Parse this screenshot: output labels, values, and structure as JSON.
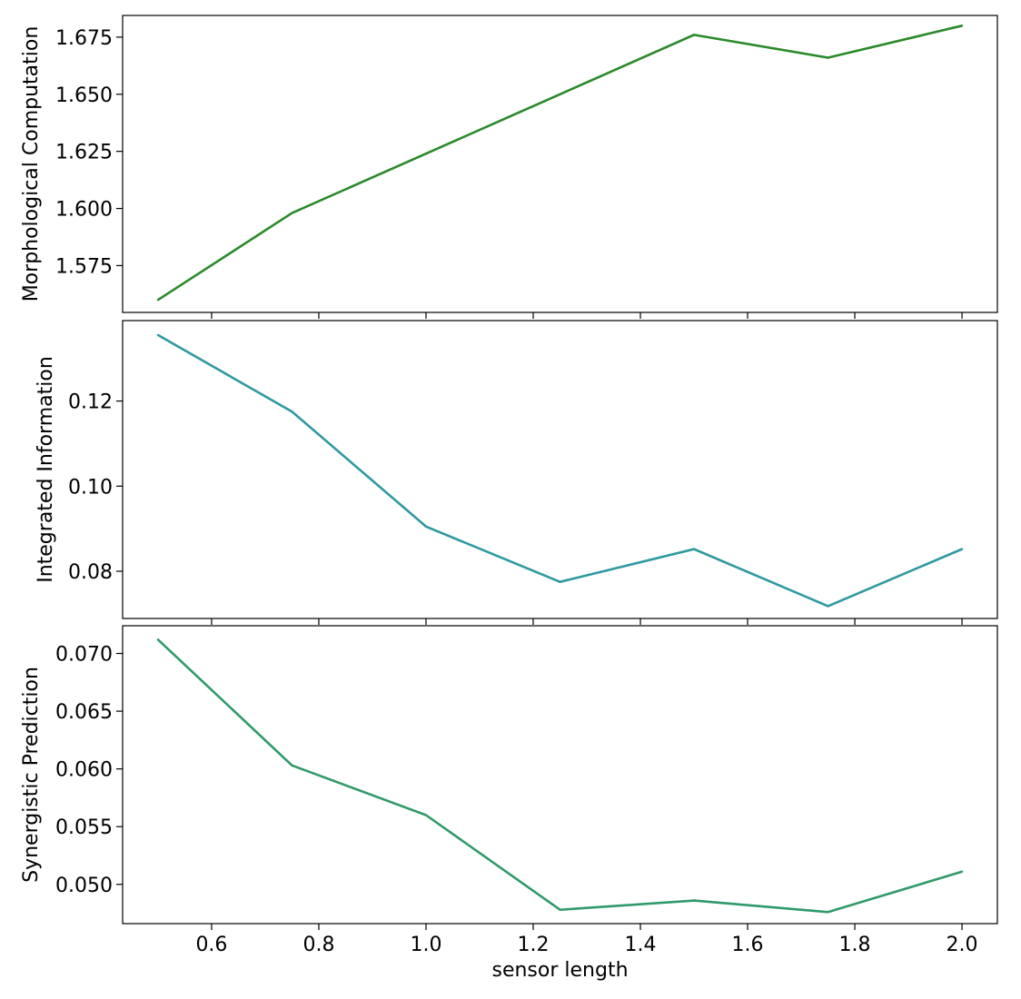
{
  "chart_data": [
    {
      "type": "line",
      "ylabel": "Morphological Computation",
      "xlabel": "",
      "x": [
        0.5,
        0.75,
        1.0,
        1.25,
        1.5,
        1.75,
        2.0
      ],
      "series": [
        {
          "values": [
            1.56,
            1.598,
            1.624,
            1.65,
            1.676,
            1.666,
            1.68
          ],
          "color": "#2a8a2a"
        }
      ],
      "xlim": [
        0.434,
        2.066
      ],
      "ylim": [
        1.5545,
        1.6845
      ],
      "yticks": [
        1.575,
        1.6,
        1.625,
        1.65,
        1.675
      ],
      "ytick_labels": [
        "1.575",
        "1.600",
        "1.625",
        "1.650",
        "1.675"
      ],
      "xticks": [
        0.6,
        0.8,
        1.0,
        1.2,
        1.4,
        1.6,
        1.8,
        2.0
      ],
      "xtick_labels": [],
      "grid": false
    },
    {
      "type": "line",
      "ylabel": "Integrated Information",
      "xlabel": "",
      "x": [
        0.5,
        0.75,
        1.0,
        1.25,
        1.5,
        1.75,
        2.0
      ],
      "series": [
        {
          "values": [
            0.1355,
            0.1175,
            0.0905,
            0.0775,
            0.0852,
            0.0718,
            0.0852
          ],
          "color": "#2e9aa0"
        }
      ],
      "xlim": [
        0.434,
        2.066
      ],
      "ylim": [
        0.0689,
        0.1389
      ],
      "yticks": [
        0.08,
        0.1,
        0.12
      ],
      "ytick_labels": [
        "0.08",
        "0.10",
        "0.12"
      ],
      "xticks": [
        0.6,
        0.8,
        1.0,
        1.2,
        1.4,
        1.6,
        1.8,
        2.0
      ],
      "xtick_labels": [],
      "grid": false
    },
    {
      "type": "line",
      "ylabel": "Synergistic Prediction",
      "xlabel": "sensor length",
      "x": [
        0.5,
        0.75,
        1.0,
        1.25,
        1.5,
        1.75,
        2.0
      ],
      "series": [
        {
          "values": [
            0.0712,
            0.0603,
            0.056,
            0.0478,
            0.0486,
            0.0476,
            0.0511
          ],
          "color": "#2f9a6a"
        }
      ],
      "xlim": [
        0.434,
        2.066
      ],
      "ylim": [
        0.0466,
        0.0724
      ],
      "yticks": [
        0.05,
        0.055,
        0.06,
        0.065,
        0.07
      ],
      "ytick_labels": [
        "0.050",
        "0.055",
        "0.060",
        "0.065",
        "0.070"
      ],
      "xticks": [
        0.6,
        0.8,
        1.0,
        1.2,
        1.4,
        1.6,
        1.8,
        2.0
      ],
      "xtick_labels": [
        "0.6",
        "0.8",
        "1.0",
        "1.2",
        "1.4",
        "1.6",
        "1.8",
        "2.0"
      ],
      "grid": false
    }
  ]
}
